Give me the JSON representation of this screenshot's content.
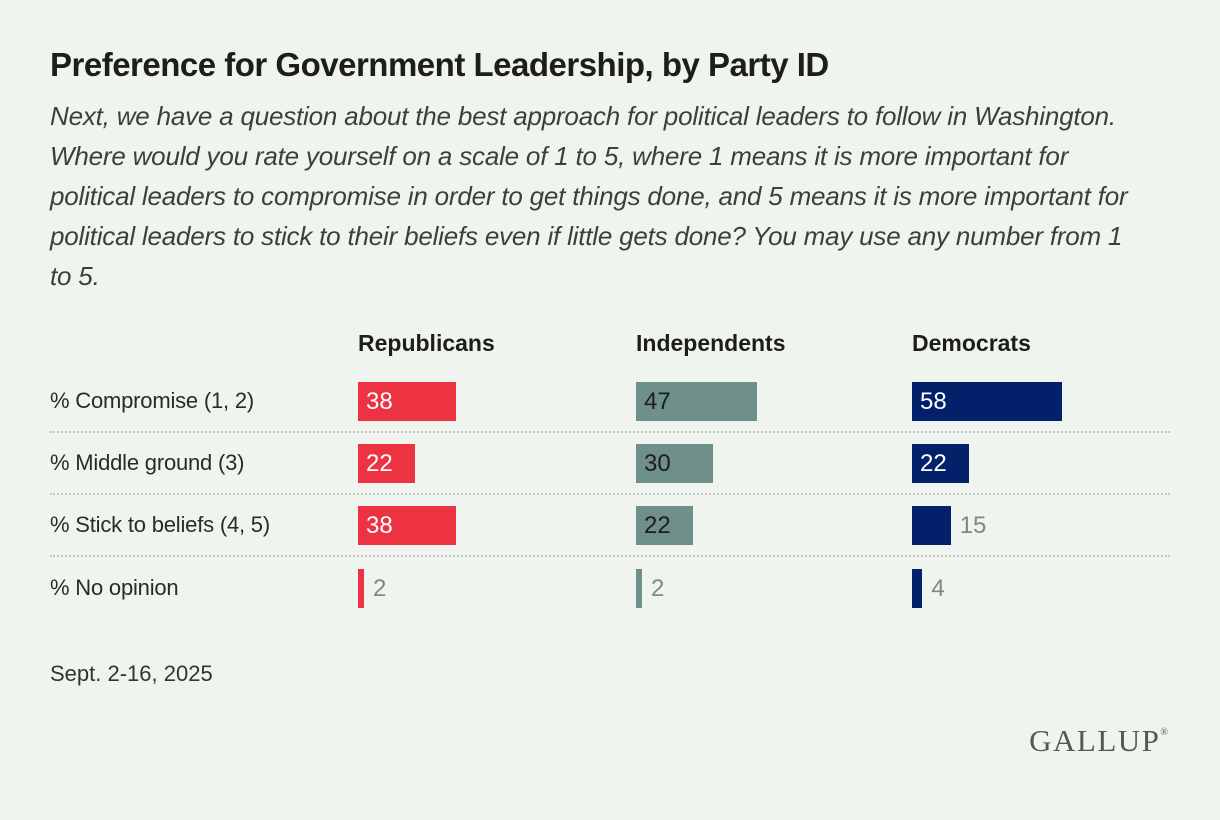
{
  "header": {
    "title": "Preference for Government Leadership, by Party ID",
    "question": "Next, we have a question about the best approach for political leaders to follow in Washington. Where would you rate yourself on a scale of 1 to 5, where 1 means it is more important for political leaders to compromise in order to get things done, and 5 means it is more important for political leaders to stick to their beliefs even if little gets done? You may use any number from 1 to 5."
  },
  "chart_data": {
    "type": "bar",
    "orientation": "horizontal",
    "title": "Preference for Government Leadership, by Party ID",
    "categories": [
      "% Compromise (1, 2)",
      "% Middle ground (3)",
      "% Stick to beliefs (4, 5)",
      "% No opinion"
    ],
    "series": [
      {
        "name": "Republicans",
        "color": "#ed3241",
        "inside_label_color": "#ffffff",
        "values": [
          38,
          22,
          38,
          2
        ]
      },
      {
        "name": "Independents",
        "color": "#6e8f8a",
        "inside_label_color": "#1d1d1b",
        "values": [
          47,
          30,
          22,
          2
        ]
      },
      {
        "name": "Democrats",
        "color": "#03216b",
        "inside_label_color": "#ffffff",
        "values": [
          58,
          22,
          15,
          4
        ]
      }
    ],
    "value_unit": "%",
    "xlim": [
      0,
      100
    ],
    "outside_label_color": "#7e8884",
    "grid": "dotted row separators",
    "legend_position": "column headers above bars"
  },
  "footer": {
    "date": "Sept. 2-16, 2025",
    "logo": "GALLUP",
    "logo_reg_mark": "®"
  }
}
